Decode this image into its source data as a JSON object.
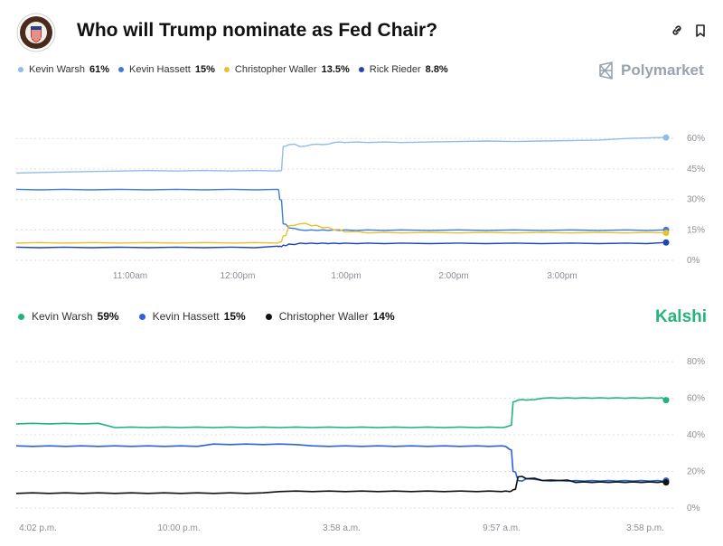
{
  "header": {
    "title": "Who will Trump nominate as Fed Chair?"
  },
  "polymarket": {
    "brand": "Polymarket",
    "legend": [
      {
        "name": "Kevin Warsh",
        "value": "61%",
        "color": "#8fbde8"
      },
      {
        "name": "Kevin Hassett",
        "value": "15%",
        "color": "#3d7bd9"
      },
      {
        "name": "Christopher Waller",
        "value": "13.5%",
        "color": "#e8c22e"
      },
      {
        "name": "Rick Rieder",
        "value": "8.8%",
        "color": "#1d46b8"
      }
    ]
  },
  "kalshi": {
    "brand": "Kalshi",
    "legend": [
      {
        "name": "Kevin Warsh",
        "value": "59%",
        "color": "#1fb47a"
      },
      {
        "name": "Kevin Hassett",
        "value": "15%",
        "color": "#2d62d8"
      },
      {
        "name": "Christopher Waller",
        "value": "14%",
        "color": "#111111"
      }
    ]
  },
  "chart_data": [
    {
      "type": "line",
      "source": "Polymarket",
      "x_ticks": [
        "11:00am",
        "12:00pm",
        "1:00pm",
        "2:00pm",
        "3:00pm"
      ],
      "y_ticks": [
        "0%",
        "15%",
        "30%",
        "45%",
        "60%"
      ],
      "ylim": [
        0,
        65
      ],
      "x": [
        10.08,
        10.5,
        11.0,
        11.5,
        12.0,
        12.4,
        12.42,
        12.45,
        12.5,
        12.6,
        12.7,
        12.8,
        12.9,
        13.0,
        13.2,
        13.5,
        14.0,
        14.5,
        15.0,
        15.5,
        15.85
      ],
      "series": [
        {
          "name": "Kevin Warsh",
          "values": [
            43,
            43.5,
            44,
            44,
            44,
            44,
            44,
            56,
            57,
            56,
            57,
            57,
            58,
            58,
            58,
            58,
            58.5,
            58.5,
            59,
            60,
            60.5
          ]
        },
        {
          "name": "Kevin Hassett",
          "values": [
            35,
            35,
            35,
            35,
            35,
            35,
            30,
            18,
            16,
            15,
            15,
            15,
            15,
            15,
            15,
            15,
            15,
            15,
            15,
            15,
            15
          ]
        },
        {
          "name": "Christopher Waller",
          "values": [
            8.5,
            8.5,
            8.5,
            8.5,
            8.5,
            8.5,
            9,
            12,
            17,
            18,
            17,
            16,
            15,
            14,
            13.5,
            13.5,
            13.5,
            13.5,
            13.5,
            13.5,
            13.5
          ]
        },
        {
          "name": "Rick Rieder",
          "values": [
            6.5,
            6.5,
            6.5,
            6.5,
            6.5,
            7,
            7,
            7.5,
            8,
            8.5,
            8.5,
            8.5,
            8.5,
            8.5,
            8.5,
            8.5,
            8.5,
            8.5,
            8.5,
            8.5,
            8.8
          ]
        }
      ]
    },
    {
      "type": "line",
      "source": "Kalshi",
      "x_ticks": [
        "4:02 p.m.",
        "10:00 p.m.",
        "3:58 a.m.",
        "9:57 a.m.",
        "3:58 p.m."
      ],
      "y_ticks": [
        "0%",
        "20%",
        "40%",
        "60%",
        "80%"
      ],
      "ylim": [
        0,
        85
      ],
      "x": [
        0,
        2,
        4,
        6,
        8,
        10,
        12,
        14,
        16,
        18,
        20,
        22,
        24,
        26,
        28,
        29.5,
        30,
        30.2,
        30.5,
        31,
        32,
        33,
        34,
        35,
        36,
        37,
        38,
        39,
        39.5
      ],
      "series": [
        {
          "name": "Kevin Warsh",
          "values": [
            46,
            46,
            46,
            44,
            44,
            44,
            44,
            44,
            44,
            44,
            44,
            44,
            44,
            44,
            44,
            44,
            45,
            58,
            59,
            59,
            60,
            60,
            60,
            60,
            60,
            60,
            60,
            60,
            59
          ]
        },
        {
          "name": "Kevin Hassett",
          "values": [
            34,
            34,
            34,
            34,
            34,
            34,
            35,
            35,
            35,
            34,
            34,
            34,
            34,
            34,
            34,
            34,
            32,
            20,
            15,
            16,
            15,
            15,
            15,
            15,
            15,
            15,
            15,
            15,
            15
          ]
        },
        {
          "name": "Christopher Waller",
          "values": [
            8,
            8,
            8,
            8,
            8,
            8,
            8,
            8,
            9,
            9,
            9,
            9,
            9,
            9,
            9,
            9,
            9,
            10,
            17,
            16,
            15,
            15,
            14,
            14,
            14,
            14,
            14,
            14,
            14
          ]
        }
      ]
    }
  ]
}
